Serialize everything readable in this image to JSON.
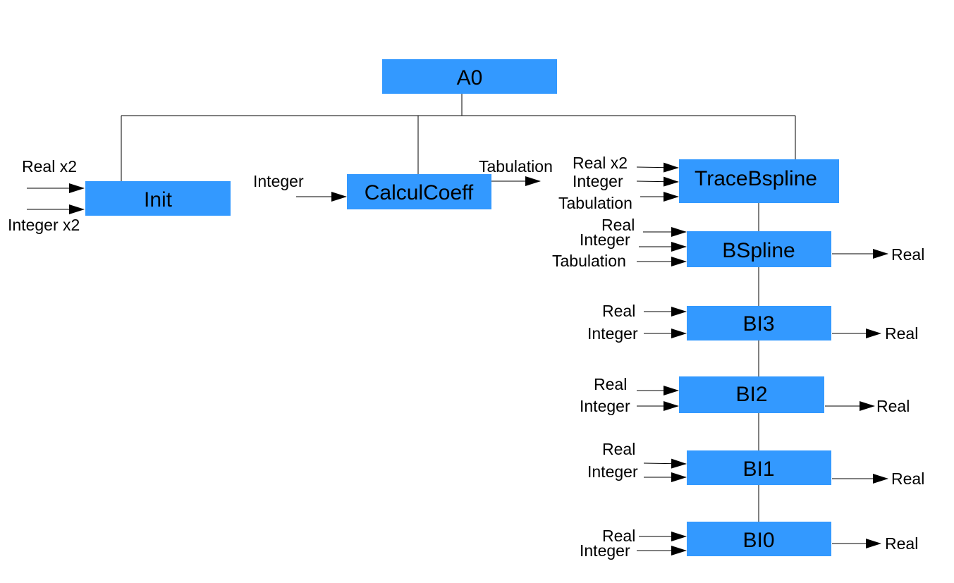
{
  "colors": {
    "box_fill": "#3399ff",
    "line": "#000000",
    "text": "#000000"
  },
  "boxes": {
    "a0": "A0",
    "init": "Init",
    "calculcoeff": "CalculCoeff",
    "tracebspline": "TraceBspline",
    "bspline": "BSpline",
    "bi3": "BI3",
    "bi2": "BI2",
    "bi1": "BI1",
    "bi0": "BI0"
  },
  "ports": {
    "init_in_real": "Real x2",
    "init_in_integer": "Integer x2",
    "calculcoeff_in_integer": "Integer",
    "calculcoeff_out_tabulation": "Tabulation",
    "trace_in_real": "Real x2",
    "trace_in_integer": "Integer",
    "trace_in_tabulation": "Tabulation",
    "bspline_in_real": "Real",
    "bspline_in_integer": "Integer",
    "bspline_in_tabulation": "Tabulation",
    "bspline_out_real": "Real",
    "bi3_in_real": "Real",
    "bi3_in_integer": "Integer",
    "bi3_out_real": "Real",
    "bi2_in_real": "Real",
    "bi2_in_integer": "Integer",
    "bi2_out_real": "Real",
    "bi1_in_real": "Real",
    "bi1_in_integer": "Integer",
    "bi1_out_real": "Real",
    "bi0_in_real": "Real",
    "bi0_in_integer": "Integer",
    "bi0_out_real": "Real"
  }
}
